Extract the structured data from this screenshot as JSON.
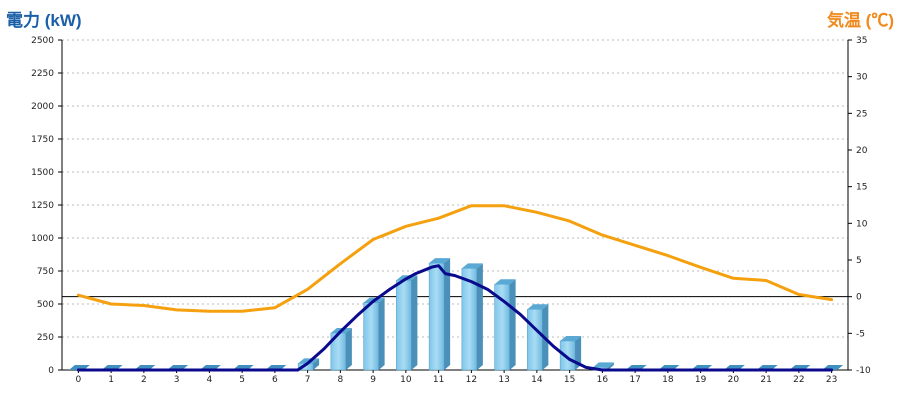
{
  "chart_data": {
    "type": "bar",
    "left_axis_title": "電力 (kW)",
    "right_axis_title": "気温 (℃)",
    "categories": [
      "0",
      "1",
      "2",
      "3",
      "4",
      "5",
      "6",
      "7",
      "8",
      "9",
      "10",
      "11",
      "12",
      "13",
      "14",
      "15",
      "16",
      "17",
      "18",
      "19",
      "20",
      "21",
      "22",
      "23"
    ],
    "y_left": {
      "min": 0,
      "max": 2500,
      "ticks": [
        "0",
        "250",
        "500",
        "750",
        "1000",
        "1250",
        "1500",
        "1750",
        "2000",
        "2250",
        "2500"
      ]
    },
    "y_right": {
      "min": -10,
      "max": 35,
      "ticks": [
        "-10",
        "-5",
        "0",
        "5",
        "10",
        "15",
        "20",
        "25",
        "30",
        "35"
      ]
    },
    "grid": true,
    "series": [
      {
        "kind": "bar",
        "axis": "left",
        "color": "#87ceeb",
        "values": [
          0,
          0,
          0,
          0,
          0,
          0,
          0,
          50,
          280,
          510,
          680,
          810,
          770,
          650,
          460,
          220,
          20,
          0,
          0,
          0,
          0,
          0,
          0,
          0
        ]
      },
      {
        "kind": "line",
        "axis": "left",
        "color": "#0a0a8c",
        "x": [
          0,
          1,
          2,
          3,
          4,
          5,
          6,
          6.7,
          7,
          7.5,
          8,
          8.5,
          9,
          9.5,
          10,
          10.3,
          10.6,
          10.8,
          11,
          11.2,
          11.5,
          12,
          12.5,
          13,
          13.5,
          14,
          14.5,
          15,
          15.5,
          16,
          17,
          18,
          19,
          20,
          21,
          22,
          23
        ],
        "values": [
          0,
          0,
          0,
          0,
          0,
          0,
          0,
          0,
          50,
          160,
          290,
          410,
          520,
          610,
          690,
          730,
          760,
          780,
          790,
          730,
          715,
          670,
          610,
          520,
          420,
          300,
          180,
          80,
          20,
          0,
          0,
          0,
          0,
          0,
          0,
          0,
          0
        ]
      },
      {
        "kind": "line",
        "axis": "right",
        "color": "#f5a00e",
        "values": [
          0.2,
          -1.0,
          -1.2,
          -1.8,
          -2.0,
          -2.0,
          -1.5,
          1.0,
          4.5,
          7.8,
          9.6,
          10.7,
          12.4,
          12.4,
          11.5,
          10.3,
          8.4,
          7.0,
          5.6,
          4.0,
          2.5,
          2.2,
          0.3,
          -0.4
        ]
      }
    ]
  }
}
